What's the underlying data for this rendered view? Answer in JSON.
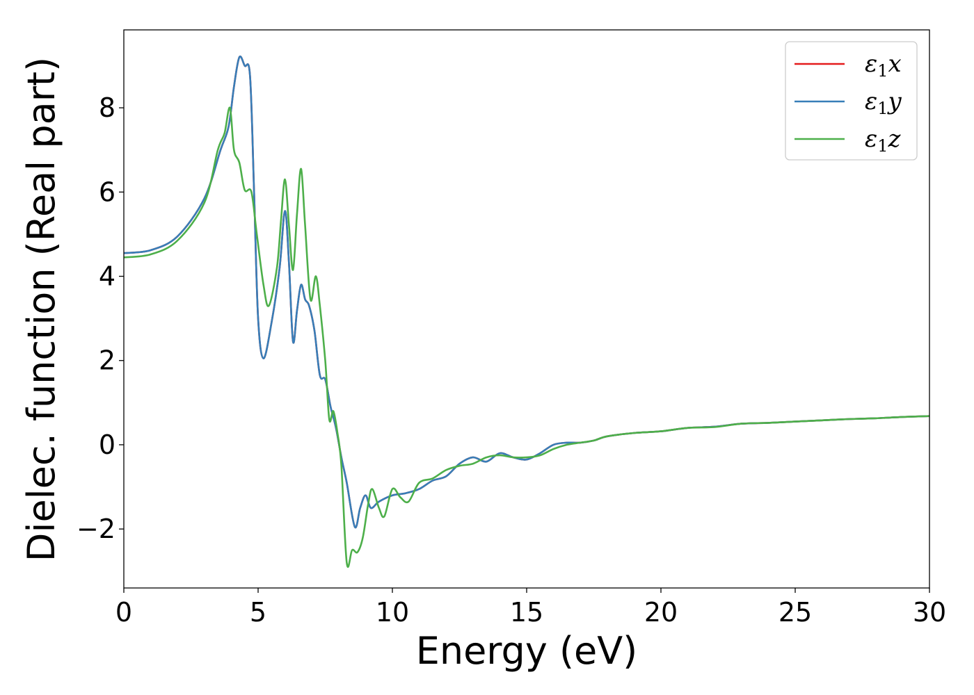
{
  "chart_data": {
    "type": "line",
    "title": "",
    "xlabel": "Energy (eV)",
    "ylabel": "Dielec. function (Real part)",
    "xlim": [
      0,
      30
    ],
    "ylim": [
      -3.4,
      9.85
    ],
    "xticks": [
      0,
      5,
      10,
      15,
      20,
      25,
      30
    ],
    "xtick_labels": [
      "0",
      "5",
      "10",
      "15",
      "20",
      "25",
      "30"
    ],
    "yticks": [
      -2,
      0,
      2,
      4,
      6,
      8
    ],
    "ytick_labels": [
      "−2",
      "0",
      "2",
      "4",
      "6",
      "8"
    ],
    "grid": false,
    "legend_position": "top-right",
    "series": [
      {
        "name": "ε1x",
        "symbol": "ε",
        "subscript": "1",
        "suffix": "x",
        "color": "#e41a1c",
        "points": [
          [
            0,
            4.55
          ],
          [
            1,
            4.62
          ],
          [
            2,
            4.95
          ],
          [
            3,
            5.85
          ],
          [
            3.6,
            7.0
          ],
          [
            3.9,
            7.55
          ],
          [
            4.1,
            8.5
          ],
          [
            4.3,
            9.2
          ],
          [
            4.5,
            9.0
          ],
          [
            4.7,
            8.75
          ],
          [
            4.85,
            6.0
          ],
          [
            5.0,
            3.0
          ],
          [
            5.2,
            2.05
          ],
          [
            5.5,
            2.9
          ],
          [
            5.8,
            4.2
          ],
          [
            6.0,
            5.55
          ],
          [
            6.15,
            4.3
          ],
          [
            6.3,
            2.45
          ],
          [
            6.45,
            3.2
          ],
          [
            6.6,
            3.8
          ],
          [
            6.75,
            3.45
          ],
          [
            6.9,
            3.3
          ],
          [
            7.1,
            2.7
          ],
          [
            7.3,
            1.65
          ],
          [
            7.5,
            1.55
          ],
          [
            7.7,
            0.9
          ],
          [
            7.9,
            0.4
          ],
          [
            8.1,
            -0.3
          ],
          [
            8.3,
            -0.9
          ],
          [
            8.6,
            -1.95
          ],
          [
            8.8,
            -1.5
          ],
          [
            9.0,
            -1.2
          ],
          [
            9.2,
            -1.5
          ],
          [
            9.5,
            -1.35
          ],
          [
            10,
            -1.2
          ],
          [
            10.5,
            -1.15
          ],
          [
            11,
            -1.05
          ],
          [
            11.5,
            -0.85
          ],
          [
            12,
            -0.75
          ],
          [
            12.5,
            -0.45
          ],
          [
            13,
            -0.3
          ],
          [
            13.5,
            -0.4
          ],
          [
            14,
            -0.2
          ],
          [
            14.5,
            -0.3
          ],
          [
            15,
            -0.35
          ],
          [
            15.5,
            -0.2
          ],
          [
            16,
            0.0
          ],
          [
            16.5,
            0.05
          ],
          [
            17,
            0.05
          ],
          [
            17.5,
            0.1
          ],
          [
            18,
            0.2
          ],
          [
            19,
            0.28
          ],
          [
            20,
            0.32
          ],
          [
            21,
            0.4
          ],
          [
            22,
            0.43
          ],
          [
            23,
            0.5
          ],
          [
            24,
            0.52
          ],
          [
            25,
            0.55
          ],
          [
            26,
            0.58
          ],
          [
            27,
            0.61
          ],
          [
            28,
            0.63
          ],
          [
            29,
            0.66
          ],
          [
            30,
            0.68
          ]
        ]
      },
      {
        "name": "ε1y",
        "symbol": "ε",
        "subscript": "1",
        "suffix": "y",
        "color": "#377eb8",
        "points": [
          [
            0,
            4.55
          ],
          [
            1,
            4.62
          ],
          [
            2,
            4.95
          ],
          [
            3,
            5.85
          ],
          [
            3.6,
            7.0
          ],
          [
            3.9,
            7.55
          ],
          [
            4.1,
            8.5
          ],
          [
            4.3,
            9.2
          ],
          [
            4.5,
            9.0
          ],
          [
            4.7,
            8.75
          ],
          [
            4.85,
            6.0
          ],
          [
            5.0,
            3.0
          ],
          [
            5.2,
            2.05
          ],
          [
            5.5,
            2.9
          ],
          [
            5.8,
            4.2
          ],
          [
            6.0,
            5.55
          ],
          [
            6.15,
            4.3
          ],
          [
            6.3,
            2.45
          ],
          [
            6.45,
            3.2
          ],
          [
            6.6,
            3.8
          ],
          [
            6.75,
            3.45
          ],
          [
            6.9,
            3.3
          ],
          [
            7.1,
            2.7
          ],
          [
            7.3,
            1.65
          ],
          [
            7.5,
            1.55
          ],
          [
            7.7,
            0.9
          ],
          [
            7.9,
            0.4
          ],
          [
            8.1,
            -0.3
          ],
          [
            8.3,
            -0.9
          ],
          [
            8.6,
            -1.95
          ],
          [
            8.8,
            -1.5
          ],
          [
            9.0,
            -1.2
          ],
          [
            9.2,
            -1.5
          ],
          [
            9.5,
            -1.35
          ],
          [
            10,
            -1.2
          ],
          [
            10.5,
            -1.15
          ],
          [
            11,
            -1.05
          ],
          [
            11.5,
            -0.85
          ],
          [
            12,
            -0.75
          ],
          [
            12.5,
            -0.45
          ],
          [
            13,
            -0.3
          ],
          [
            13.5,
            -0.4
          ],
          [
            14,
            -0.2
          ],
          [
            14.5,
            -0.3
          ],
          [
            15,
            -0.35
          ],
          [
            15.5,
            -0.2
          ],
          [
            16,
            0.0
          ],
          [
            16.5,
            0.05
          ],
          [
            17,
            0.05
          ],
          [
            17.5,
            0.1
          ],
          [
            18,
            0.2
          ],
          [
            19,
            0.28
          ],
          [
            20,
            0.32
          ],
          [
            21,
            0.4
          ],
          [
            22,
            0.43
          ],
          [
            23,
            0.5
          ],
          [
            24,
            0.52
          ],
          [
            25,
            0.55
          ],
          [
            26,
            0.58
          ],
          [
            27,
            0.61
          ],
          [
            28,
            0.63
          ],
          [
            29,
            0.66
          ],
          [
            30,
            0.68
          ]
        ]
      },
      {
        "name": "ε1z",
        "symbol": "ε",
        "subscript": "1",
        "suffix": "z",
        "color": "#4daf4a",
        "points": [
          [
            0,
            4.45
          ],
          [
            1,
            4.52
          ],
          [
            2,
            4.85
          ],
          [
            3,
            5.75
          ],
          [
            3.5,
            7.0
          ],
          [
            3.75,
            7.4
          ],
          [
            3.95,
            8.0
          ],
          [
            4.1,
            7.0
          ],
          [
            4.3,
            6.7
          ],
          [
            4.5,
            6.05
          ],
          [
            4.75,
            6.0
          ],
          [
            4.95,
            5.0
          ],
          [
            5.2,
            3.8
          ],
          [
            5.4,
            3.3
          ],
          [
            5.7,
            4.2
          ],
          [
            5.85,
            5.3
          ],
          [
            6.0,
            6.3
          ],
          [
            6.15,
            5.2
          ],
          [
            6.3,
            4.15
          ],
          [
            6.45,
            5.5
          ],
          [
            6.6,
            6.55
          ],
          [
            6.75,
            5.2
          ],
          [
            6.95,
            3.45
          ],
          [
            7.15,
            4.0
          ],
          [
            7.3,
            3.3
          ],
          [
            7.5,
            2.0
          ],
          [
            7.65,
            0.6
          ],
          [
            7.8,
            0.8
          ],
          [
            7.95,
            0.3
          ],
          [
            8.1,
            -0.5
          ],
          [
            8.3,
            -2.8
          ],
          [
            8.5,
            -2.5
          ],
          [
            8.7,
            -2.55
          ],
          [
            8.9,
            -2.2
          ],
          [
            9.1,
            -1.4
          ],
          [
            9.25,
            -1.05
          ],
          [
            9.5,
            -1.5
          ],
          [
            9.7,
            -1.7
          ],
          [
            10,
            -1.05
          ],
          [
            10.3,
            -1.25
          ],
          [
            10.6,
            -1.35
          ],
          [
            11,
            -0.9
          ],
          [
            11.5,
            -0.8
          ],
          [
            12,
            -0.6
          ],
          [
            12.5,
            -0.5
          ],
          [
            13,
            -0.45
          ],
          [
            13.5,
            -0.3
          ],
          [
            14,
            -0.25
          ],
          [
            14.5,
            -0.3
          ],
          [
            15,
            -0.3
          ],
          [
            15.5,
            -0.25
          ],
          [
            16,
            -0.1
          ],
          [
            16.5,
            0.0
          ],
          [
            17,
            0.05
          ],
          [
            17.5,
            0.1
          ],
          [
            18,
            0.2
          ],
          [
            19,
            0.28
          ],
          [
            20,
            0.32
          ],
          [
            21,
            0.4
          ],
          [
            22,
            0.42
          ],
          [
            23,
            0.5
          ],
          [
            24,
            0.52
          ],
          [
            25,
            0.55
          ],
          [
            26,
            0.58
          ],
          [
            27,
            0.61
          ],
          [
            28,
            0.63
          ],
          [
            29,
            0.66
          ],
          [
            30,
            0.68
          ]
        ]
      }
    ]
  }
}
